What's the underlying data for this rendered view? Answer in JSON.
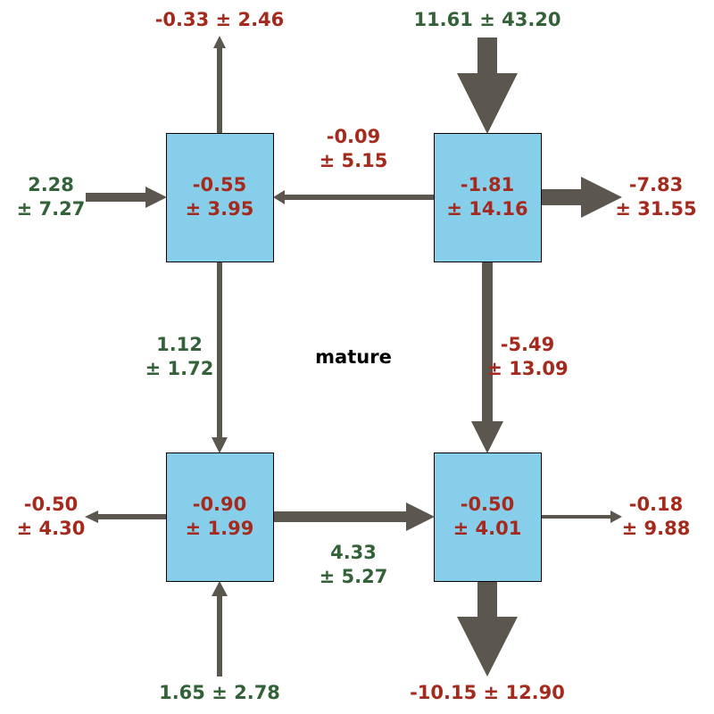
{
  "title": "mature",
  "colors": {
    "box_fill": "#87ceeb",
    "box_stroke": "#000000",
    "arrow": "#5b574e",
    "positive": "#336238",
    "negative": "#a52a1e"
  },
  "boxes": {
    "top_left": {
      "line1": "-0.55",
      "line2": "± 3.95"
    },
    "top_right": {
      "line1": "-1.81",
      "line2": "± 14.16"
    },
    "bottom_left": {
      "line1": "-0.90",
      "line2": "± 1.99"
    },
    "bottom_right": {
      "line1": "-0.50",
      "line2": "± 4.01"
    }
  },
  "flows": {
    "tl_out_up": {
      "text": "-0.33 ± 2.46"
    },
    "tr_in_top": {
      "text": "11.61 ± 43.20"
    },
    "tl_in_left": {
      "line1": "2.28",
      "line2": "± 7.27"
    },
    "tr_to_tl": {
      "line1": "-0.09",
      "line2": "± 5.15"
    },
    "tr_out_right": {
      "line1": "-7.83",
      "line2": "± 31.55"
    },
    "tl_to_bl": {
      "line1": "1.12",
      "line2": "± 1.72"
    },
    "tr_to_br": {
      "line1": "-5.49",
      "line2": "± 13.09"
    },
    "bl_out_left": {
      "line1": "-0.50",
      "line2": "± 4.30"
    },
    "bl_to_br": {
      "line1": "4.33",
      "line2": "± 5.27"
    },
    "br_out_right": {
      "line1": "-0.18",
      "line2": "± 9.88"
    },
    "bl_in_bottom": {
      "text": "1.65 ± 2.78"
    },
    "br_out_bottom": {
      "text": "-10.15 ± 12.90"
    }
  }
}
